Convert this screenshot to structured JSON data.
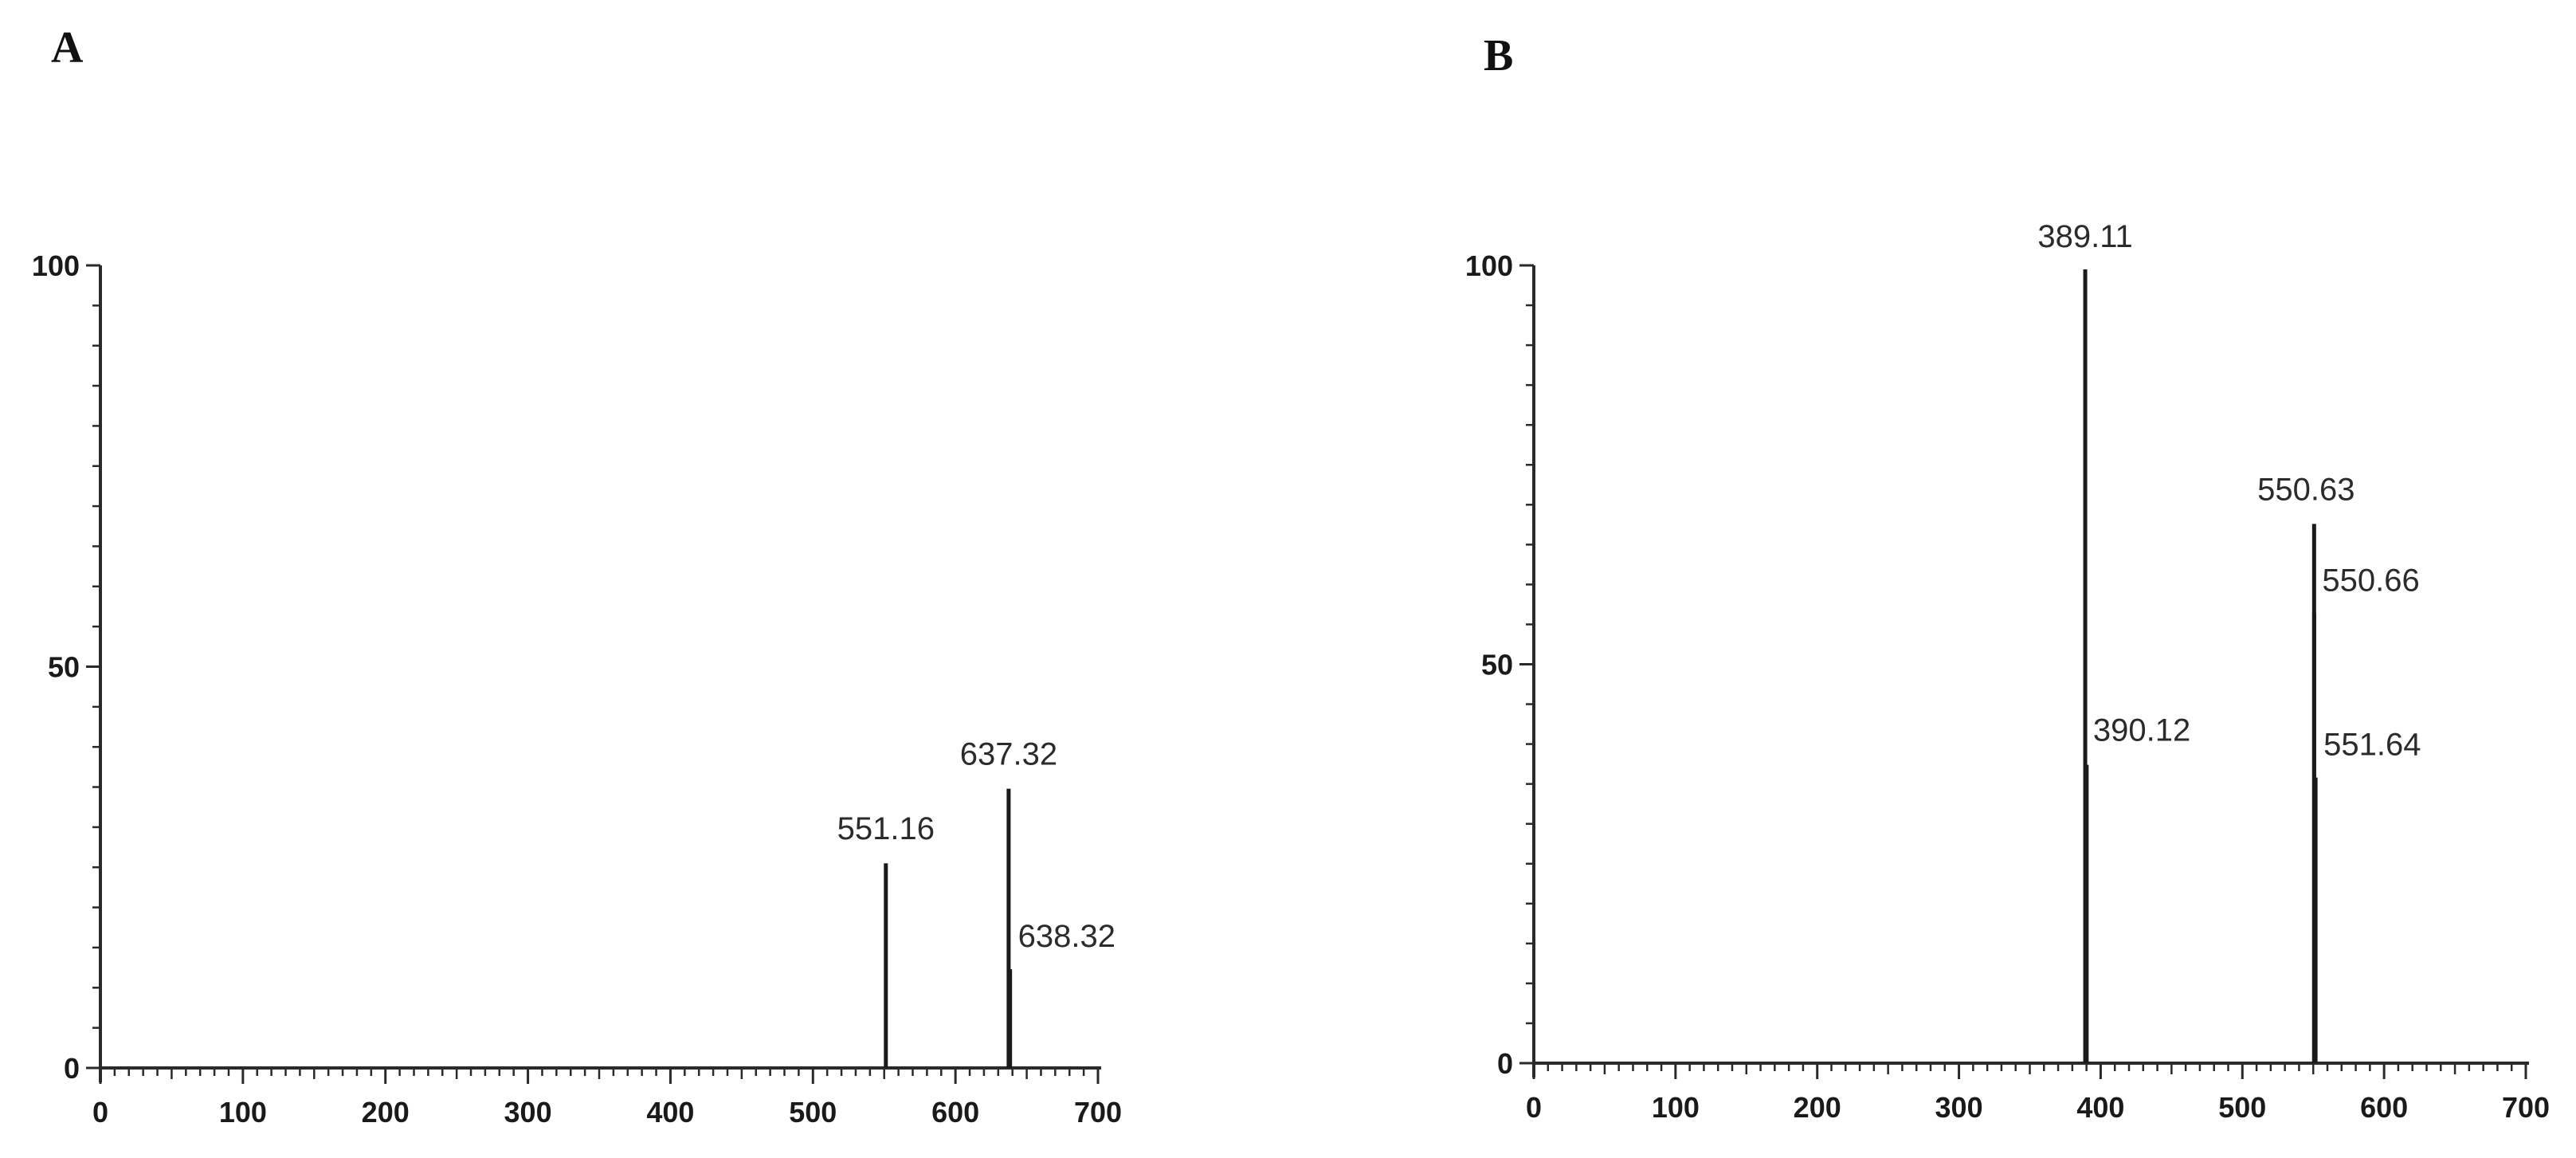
{
  "chart_data": [
    {
      "type": "bar",
      "panel": "A",
      "title": "",
      "xlabel": "",
      "ylabel": "",
      "xlim": [
        0,
        700
      ],
      "ylim": [
        0,
        100
      ],
      "xticks": [
        0,
        100,
        200,
        300,
        400,
        500,
        600,
        700
      ],
      "yticks": [
        0,
        50,
        100
      ],
      "grid": false,
      "peaks": [
        {
          "x": 551.16,
          "y": 25.5,
          "label": "551.16"
        },
        {
          "x": 637.32,
          "y": 34.8,
          "label": "637.32"
        },
        {
          "x": 638.32,
          "y": 12.3,
          "label": "638.32"
        }
      ]
    },
    {
      "type": "bar",
      "panel": "B",
      "title": "",
      "xlabel": "",
      "ylabel": "",
      "xlim": [
        0,
        700
      ],
      "ylim": [
        0,
        100
      ],
      "xticks": [
        0,
        100,
        200,
        300,
        400,
        500,
        600,
        700
      ],
      "yticks": [
        0,
        50,
        100
      ],
      "grid": false,
      "peaks": [
        {
          "x": 389.11,
          "y": 99.5,
          "label": "389.11"
        },
        {
          "x": 390.12,
          "y": 37.4,
          "label": "390.12"
        },
        {
          "x": 550.63,
          "y": 67.6,
          "label": "550.63"
        },
        {
          "x": 550.66,
          "y": 56.4,
          "label": "550.66"
        },
        {
          "x": 551.64,
          "y": 35.8,
          "label": "551.64"
        }
      ]
    }
  ]
}
